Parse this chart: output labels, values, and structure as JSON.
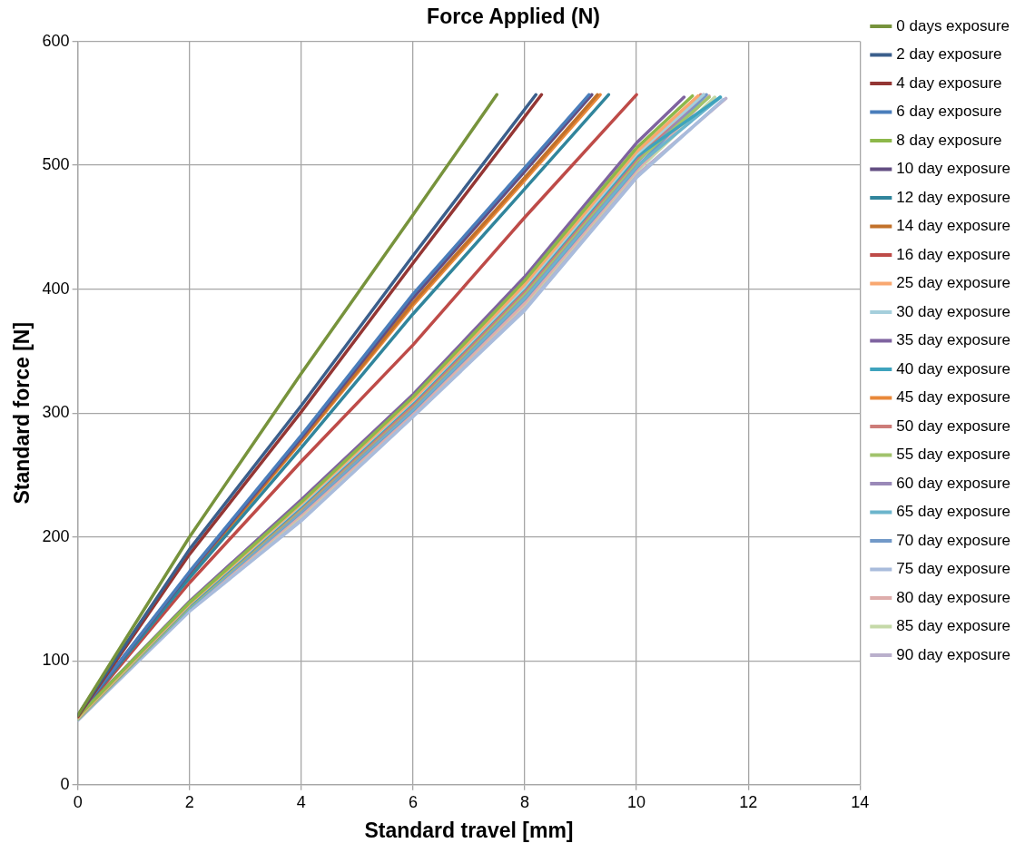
{
  "chart_data": {
    "type": "line",
    "title": "Force Applied (N)",
    "xlabel": "Standard travel [mm]",
    "ylabel": "Standard force [N]",
    "xlim": [
      0,
      14
    ],
    "xticks": [
      0,
      2,
      4,
      6,
      8,
      10,
      12,
      14
    ],
    "ylim": [
      0,
      600
    ],
    "yticks": [
      0,
      100,
      200,
      300,
      400,
      500,
      600
    ],
    "grid": true,
    "legend": "right",
    "marker": "none",
    "line_style": "solid",
    "series": [
      {
        "name": "0 days exposure",
        "color": "#77933c",
        "x": [
          0,
          2,
          4,
          6,
          7.5
        ],
        "values": [
          56,
          200,
          332,
          460,
          557
        ]
      },
      {
        "name": "2 day exposure",
        "color": "#3b5f8c",
        "x": [
          0,
          2,
          4,
          6,
          8.2
        ],
        "values": [
          56,
          190,
          306,
          427,
          557
        ]
      },
      {
        "name": "4 day exposure",
        "color": "#943634",
        "x": [
          0,
          2,
          4,
          6,
          8.3
        ],
        "values": [
          55,
          186,
          301,
          421,
          557
        ]
      },
      {
        "name": "6 day exposure",
        "color": "#4a7ebb",
        "x": [
          0,
          2,
          4,
          6,
          8,
          9.15
        ],
        "values": [
          56,
          172,
          282,
          396,
          498,
          557
        ]
      },
      {
        "name": "8 day exposure",
        "color": "#8db84a",
        "x": [
          0,
          2,
          4,
          6,
          8,
          10,
          11
        ],
        "values": [
          55,
          147,
          228,
          313,
          407,
          514,
          556
        ]
      },
      {
        "name": "10 day exposure",
        "color": "#634e82",
        "x": [
          0,
          2,
          4,
          6,
          8,
          9.2
        ],
        "values": [
          56,
          171,
          280,
          393,
          495,
          557
        ]
      },
      {
        "name": "12 day exposure",
        "color": "#31859c",
        "x": [
          0,
          2,
          4,
          6,
          8,
          9.5
        ],
        "values": [
          56,
          167,
          272,
          380,
          481,
          557
        ]
      },
      {
        "name": "14 day exposure",
        "color": "#c2712a",
        "x": [
          0,
          2,
          4,
          6,
          8,
          9.3
        ],
        "values": [
          56,
          170,
          278,
          389,
          490,
          557
        ]
      },
      {
        "name": "16 day exposure",
        "color": "#be4b48",
        "x": [
          0,
          2,
          4,
          6,
          8,
          10
        ],
        "values": [
          55,
          163,
          261,
          355,
          458,
          557
        ]
      },
      {
        "name": "25 day exposure",
        "color": "#f9a870",
        "x": [
          0,
          2,
          4,
          6,
          8,
          10,
          11.1
        ],
        "values": [
          54,
          146,
          227,
          311,
          404,
          511,
          556
        ]
      },
      {
        "name": "30 day exposure",
        "color": "#a5cfdc",
        "x": [
          0,
          2,
          4,
          6,
          8,
          10,
          11.2
        ],
        "values": [
          54,
          146,
          226,
          310,
          402,
          509,
          557
        ]
      },
      {
        "name": "35 day exposure",
        "color": "#7f63a0",
        "x": [
          0,
          2,
          4,
          6,
          8,
          10,
          10.85
        ],
        "values": [
          55,
          148,
          230,
          315,
          410,
          518,
          555
        ]
      },
      {
        "name": "40 day exposure",
        "color": "#3ea3bd",
        "x": [
          0,
          2,
          4,
          6,
          8,
          10,
          11.5
        ],
        "values": [
          54,
          145,
          225,
          309,
          401,
          507,
          555
        ]
      },
      {
        "name": "45 day exposure",
        "color": "#e9883a",
        "x": [
          0,
          2,
          4,
          6,
          8,
          9.35
        ],
        "values": [
          56,
          169,
          277,
          387,
          488,
          557
        ]
      },
      {
        "name": "50 day exposure",
        "color": "#cd7c79",
        "x": [
          0,
          2,
          4,
          6,
          8,
          10,
          11.15
        ],
        "values": [
          54,
          145,
          224,
          307,
          399,
          505,
          557
        ]
      },
      {
        "name": "55 day exposure",
        "color": "#a1c36c",
        "x": [
          0,
          2,
          4,
          6,
          8,
          10,
          11.3
        ],
        "values": [
          53,
          144,
          223,
          306,
          397,
          503,
          555
        ]
      },
      {
        "name": "60 day exposure",
        "color": "#9a89b8",
        "x": [
          0,
          2,
          4,
          6,
          8,
          10,
          11.2
        ],
        "values": [
          53,
          144,
          222,
          305,
          396,
          502,
          557
        ]
      },
      {
        "name": "65 day exposure",
        "color": "#6cb5cc",
        "x": [
          0,
          2,
          4,
          6,
          8,
          10,
          11.5
        ],
        "values": [
          53,
          143,
          221,
          303,
          393,
          499,
          555
        ]
      },
      {
        "name": "70 day exposure",
        "color": "#7299c8",
        "x": [
          0,
          2,
          4,
          6,
          8,
          10,
          11.25
        ],
        "values": [
          53,
          143,
          220,
          302,
          392,
          498,
          557
        ]
      },
      {
        "name": "75 day exposure",
        "color": "#a9bcdc",
        "x": [
          0,
          2,
          4,
          6,
          8,
          10,
          11.55
        ],
        "values": [
          52,
          140,
          213,
          297,
          383,
          490,
          553
        ]
      },
      {
        "name": "80 day exposure",
        "color": "#deadab",
        "x": [
          0,
          2,
          4,
          6,
          8,
          10,
          11.3
        ],
        "values": [
          53,
          142,
          218,
          300,
          389,
          496,
          556
        ]
      },
      {
        "name": "85 day exposure",
        "color": "#c5d9a8",
        "x": [
          0,
          2,
          4,
          6,
          8,
          10,
          11.4
        ],
        "values": [
          53,
          142,
          217,
          300,
          388,
          495,
          555
        ]
      },
      {
        "name": "90 day exposure",
        "color": "#bab0cc",
        "x": [
          0,
          2,
          4,
          6,
          8,
          10,
          11.6
        ],
        "values": [
          52,
          141,
          215,
          298,
          385,
          492,
          554
        ]
      }
    ]
  }
}
